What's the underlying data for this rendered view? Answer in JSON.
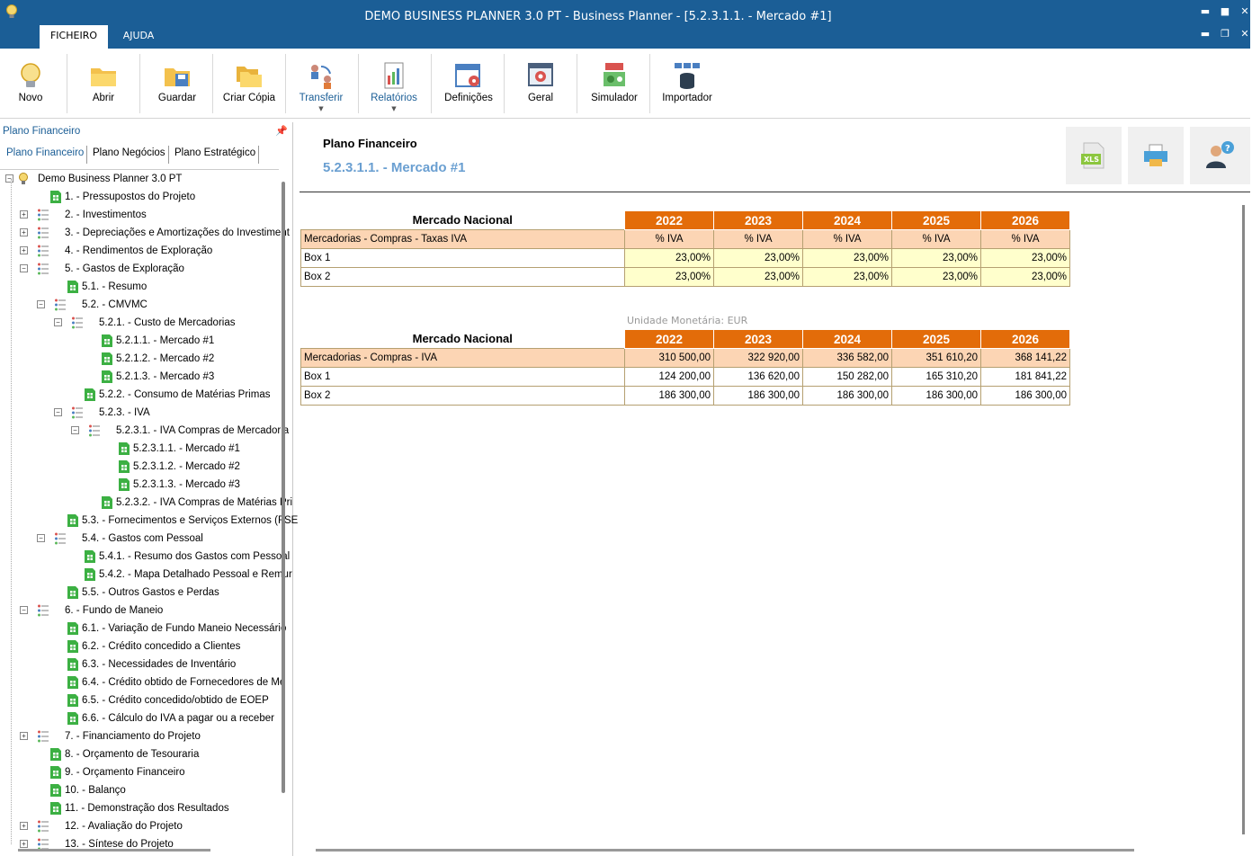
{
  "window": {
    "title": "DEMO BUSINESS PLANNER 3.0 PT - Business Planner - [5.2.3.1.1. - Mercado #1]"
  },
  "menu_tabs": [
    "FICHEIRO",
    "AJUDA"
  ],
  "ribbon": [
    {
      "label": "Novo",
      "icon": "lightbulb-icon"
    },
    {
      "label": "Abrir",
      "icon": "folder-open-icon"
    },
    {
      "label": "Guardar",
      "icon": "save-folder-icon"
    },
    {
      "label": "Criar Cópia",
      "icon": "copy-folder-icon"
    },
    {
      "label": "Transferir",
      "icon": "transfer-users-icon",
      "dropdown": true
    },
    {
      "label": "Relatórios",
      "icon": "report-icon",
      "dropdown": true
    },
    {
      "label": "Definições",
      "icon": "settings-calendar-icon"
    },
    {
      "label": "Geral",
      "icon": "gear-window-icon"
    },
    {
      "label": "Simulador",
      "icon": "simulator-icon"
    },
    {
      "label": "Importador",
      "icon": "database-import-icon"
    }
  ],
  "left_panel": {
    "title": "Plano Financeiro",
    "tabs": [
      "Plano Financeiro",
      "Plano Negócios",
      "Plano Estratégico"
    ],
    "tree": [
      {
        "label": "Demo Business Planner 3.0 PT",
        "level": 0,
        "type": "root",
        "expander": "-"
      },
      {
        "label": "1. - Pressupostos do Projeto",
        "level": 1,
        "type": "sheet"
      },
      {
        "label": "2. - Investimentos",
        "level": 1,
        "type": "folder",
        "expander": "+"
      },
      {
        "label": "3. - Depreciações e Amortizações do Investiment",
        "level": 1,
        "type": "folder",
        "expander": "+"
      },
      {
        "label": "4. - Rendimentos de Exploração",
        "level": 1,
        "type": "folder",
        "expander": "+"
      },
      {
        "label": "5. - Gastos de Exploração",
        "level": 1,
        "type": "folder",
        "expander": "-"
      },
      {
        "label": "5.1. - Resumo",
        "level": 2,
        "type": "sheet"
      },
      {
        "label": "5.2. - CMVMC",
        "level": 2,
        "type": "folder",
        "expander": "-"
      },
      {
        "label": "5.2.1. - Custo de Mercadorias",
        "level": 3,
        "type": "folder",
        "expander": "-"
      },
      {
        "label": "5.2.1.1. - Mercado #1",
        "level": 4,
        "type": "sheet"
      },
      {
        "label": "5.2.1.2. - Mercado #2",
        "level": 4,
        "type": "sheet"
      },
      {
        "label": "5.2.1.3. - Mercado #3",
        "level": 4,
        "type": "sheet"
      },
      {
        "label": "5.2.2. - Consumo de Matérias Primas",
        "level": 3,
        "type": "sheet"
      },
      {
        "label": "5.2.3. - IVA",
        "level": 3,
        "type": "folder",
        "expander": "-"
      },
      {
        "label": "5.2.3.1. - IVA Compras de Mercadoria",
        "level": 4,
        "type": "folder",
        "expander": "-"
      },
      {
        "label": "5.2.3.1.1. - Mercado #1",
        "level": 5,
        "type": "sheet"
      },
      {
        "label": "5.2.3.1.2. - Mercado #2",
        "level": 5,
        "type": "sheet"
      },
      {
        "label": "5.2.3.1.3. - Mercado #3",
        "level": 5,
        "type": "sheet"
      },
      {
        "label": "5.2.3.2. - IVA Compras de Matérias Pri",
        "level": 4,
        "type": "sheet"
      },
      {
        "label": "5.3. - Fornecimentos e Serviços Externos (FSE",
        "level": 2,
        "type": "sheet"
      },
      {
        "label": "5.4. - Gastos com Pessoal",
        "level": 2,
        "type": "folder",
        "expander": "-"
      },
      {
        "label": "5.4.1. - Resumo dos Gastos com Pessoal",
        "level": 3,
        "type": "sheet"
      },
      {
        "label": "5.4.2. - Mapa Detalhado Pessoal e Remur",
        "level": 3,
        "type": "sheet"
      },
      {
        "label": "5.5. - Outros Gastos e Perdas",
        "level": 2,
        "type": "sheet"
      },
      {
        "label": "6. - Fundo de Maneio",
        "level": 1,
        "type": "folder",
        "expander": "-"
      },
      {
        "label": "6.1. - Variação de Fundo Maneio Necessário",
        "level": 2,
        "type": "sheet"
      },
      {
        "label": "6.2. - Crédito concedido a Clientes",
        "level": 2,
        "type": "sheet"
      },
      {
        "label": "6.3. - Necessidades de Inventário",
        "level": 2,
        "type": "sheet"
      },
      {
        "label": "6.4. - Crédito obtido de Fornecedores de Me",
        "level": 2,
        "type": "sheet"
      },
      {
        "label": "6.5. - Crédito concedido/obtido de EOEP",
        "level": 2,
        "type": "sheet"
      },
      {
        "label": "6.6. - Cálculo do IVA a pagar ou a receber",
        "level": 2,
        "type": "sheet"
      },
      {
        "label": "7. - Financiamento do Projeto",
        "level": 1,
        "type": "folder",
        "expander": "+"
      },
      {
        "label": "8. - Orçamento de Tesouraria",
        "level": 1,
        "type": "sheet"
      },
      {
        "label": "9. - Orçamento Financeiro",
        "level": 1,
        "type": "sheet"
      },
      {
        "label": "10. - Balanço",
        "level": 1,
        "type": "sheet"
      },
      {
        "label": "11. - Demonstração dos Resultados",
        "level": 1,
        "type": "sheet"
      },
      {
        "label": "12. - Avaliação do Projeto",
        "level": 1,
        "type": "folder",
        "expander": "+"
      },
      {
        "label": "13. - Síntese do Projeto",
        "level": 1,
        "type": "folder",
        "expander": "+"
      }
    ]
  },
  "main": {
    "title": "Plano Financeiro",
    "subtitle": "5.2.3.1.1. - Mercado #1",
    "header_buttons": [
      "xls-export-icon",
      "printer-icon",
      "help-user-icon"
    ],
    "table1": {
      "market": "Mercado Nacional",
      "years": [
        "2022",
        "2023",
        "2024",
        "2025",
        "2026"
      ],
      "header_label": "Mercadorias - Compras - Taxas IVA",
      "header_values": [
        "% IVA",
        "% IVA",
        "% IVA",
        "% IVA",
        "% IVA"
      ],
      "rows": [
        {
          "label": "Box 1",
          "values": [
            "23,00%",
            "23,00%",
            "23,00%",
            "23,00%",
            "23,00%"
          ]
        },
        {
          "label": "Box 2",
          "values": [
            "23,00%",
            "23,00%",
            "23,00%",
            "23,00%",
            "23,00%"
          ]
        }
      ]
    },
    "unit_text": "Unidade Monetária: EUR",
    "table2": {
      "market": "Mercado Nacional",
      "years": [
        "2022",
        "2023",
        "2024",
        "2025",
        "2026"
      ],
      "header_label": "Mercadorias - Compras - IVA",
      "header_values": [
        "310 500,00",
        "322 920,00",
        "336 582,00",
        "351 610,20",
        "368 141,22"
      ],
      "rows": [
        {
          "label": "Box 1",
          "values": [
            "124 200,00",
            "136 620,00",
            "150 282,00",
            "165 310,20",
            "181 841,22"
          ]
        },
        {
          "label": "Box 2",
          "values": [
            "186 300,00",
            "186 300,00",
            "186 300,00",
            "186 300,00",
            "186 300,00"
          ]
        }
      ]
    }
  },
  "colors": {
    "titlebar": "#1b5e96",
    "year_header": "#e36c09",
    "row_header": "#fcd5b4",
    "input_cell": "#ffffcc",
    "subtitle": "#6a9fd1"
  }
}
